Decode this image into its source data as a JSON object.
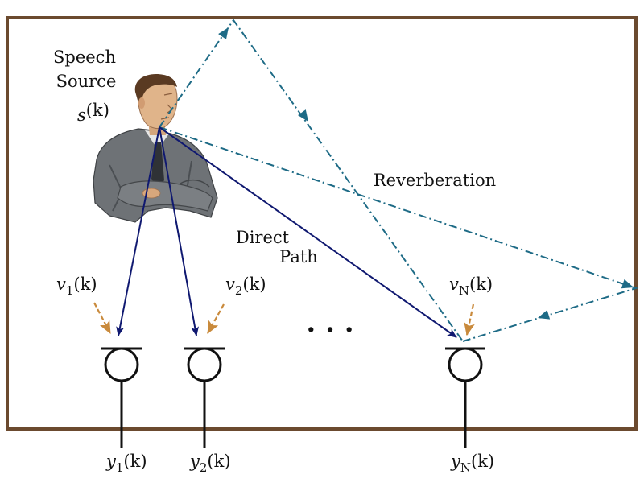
{
  "labels": {
    "speech": "Speech",
    "source": "Source",
    "direct": "Direct",
    "path": "Path",
    "reverberation": "Reverberation",
    "dots": ". . ."
  },
  "signals": {
    "s": {
      "base": "s",
      "sub": "",
      "arg": "(k)"
    },
    "v1": {
      "base": "v",
      "sub": "1",
      "arg": "(k)"
    },
    "v2": {
      "base": "v",
      "sub": "2",
      "arg": "(k)"
    },
    "vN": {
      "base": "v",
      "sub": "N",
      "arg": "(k)"
    },
    "y1": {
      "base": "y",
      "sub": "1",
      "arg": "(k)"
    },
    "y2": {
      "base": "y",
      "sub": "2",
      "arg": "(k)"
    },
    "yN": {
      "base": "y",
      "sub": "N",
      "arg": "(k)"
    }
  },
  "colors": {
    "room": "#6b4a2f",
    "direct": "#0f1870",
    "reverb": "#1e6b86",
    "noise": "#c98a3c",
    "mic": "#111111",
    "suit": "#6e7276",
    "skin": "#e0b48a",
    "hair": "#5a3a22"
  }
}
